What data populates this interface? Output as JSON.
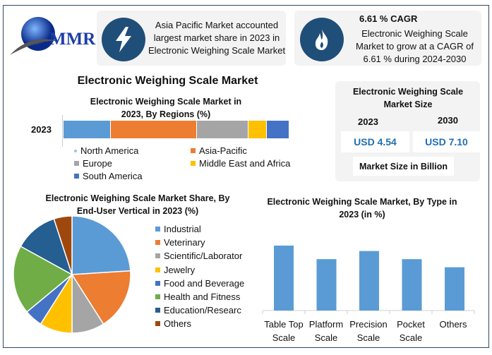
{
  "logo": {
    "text": "MMR"
  },
  "info_cards": [
    {
      "icon": "lightning-icon",
      "text": "Asia Pacific Market accounted largest market share in 2023 in Electronic Weighing Scale Market"
    },
    {
      "icon": "flame-icon",
      "heading": "6.61 % CAGR",
      "text": "Electronic Weighing Scale Market to grow at a CAGR of 6.61 % during 2024-2030"
    }
  ],
  "main_title": "Electronic Weighing Scale Market",
  "market_size": {
    "title": "Electronic Weighing Scale Market Size",
    "years": [
      "2023",
      "2030"
    ],
    "values": [
      "USD 4.54",
      "USD 7.10"
    ],
    "note": "Market Size in Billion"
  },
  "colors": {
    "accent": "#1f4e79",
    "value_text": "#1f6fb3"
  },
  "chart_data": [
    {
      "type": "bar",
      "orientation": "horizontal-stacked",
      "title": "Electronic Weighing Scale Market in 2023, By Regions (%)",
      "categories": [
        "2023"
      ],
      "series": [
        {
          "name": "North America",
          "values": [
            21
          ],
          "color": "#5b9bd5"
        },
        {
          "name": "Asia-Pacific",
          "values": [
            38
          ],
          "color": "#ed7d31"
        },
        {
          "name": "Europe",
          "values": [
            23
          ],
          "color": "#a5a5a5"
        },
        {
          "name": "Middle East and Africa",
          "values": [
            8
          ],
          "color": "#ffc000"
        },
        {
          "name": "South America",
          "values": [
            10
          ],
          "color": "#4472c4"
        }
      ],
      "legend": "bottom"
    },
    {
      "type": "pie",
      "title": "Electronic Weighing Scale Market Share, By End-User Vertical in 2023  (%)",
      "labels": [
        "Industrial",
        "Veterinary",
        "Scientific/Laboratory",
        "Jewelry",
        "Food and Beverage",
        "Health and Fitness",
        "Education/Research",
        "Others"
      ],
      "legend_labels": [
        "Industrial",
        "Veterinary",
        "Scientific/Laborator",
        "Jewelry",
        "Food and Beverage",
        "Health and Fitness",
        "Education/Researc",
        "Others"
      ],
      "values": [
        24,
        17,
        9,
        9,
        5,
        19,
        12,
        5
      ],
      "colors": [
        "#5b9bd5",
        "#ed7d31",
        "#a5a5a5",
        "#ffc000",
        "#4472c4",
        "#70ad47",
        "#255e91",
        "#9e480e"
      ],
      "legend": "right"
    },
    {
      "type": "bar",
      "title": "Electronic Weighing Scale Market, By Type in 2023 (in %)",
      "categories": [
        "Table Top Scale",
        "Platform Scale",
        "Precision Scale",
        "Pocket Scale",
        "Others"
      ],
      "category_lines": [
        [
          "Table Top",
          "Scale"
        ],
        [
          "Platform",
          "Scale"
        ],
        [
          "Precision",
          "Scale"
        ],
        [
          "Pocket",
          "Scale"
        ],
        [
          "Others",
          ""
        ]
      ],
      "values": [
        24,
        19,
        22,
        19,
        16
      ],
      "color": "#5b9bd5",
      "grid": false
    }
  ]
}
